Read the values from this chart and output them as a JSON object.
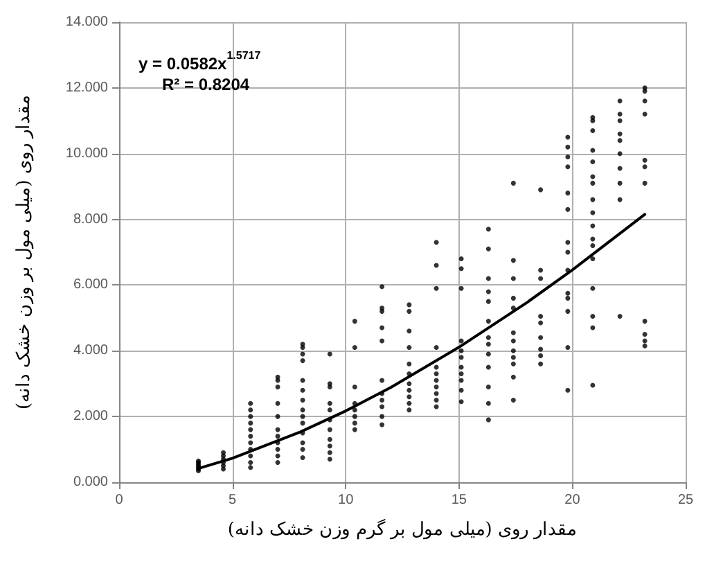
{
  "chart_data": {
    "type": "scatter",
    "xlabel": "مقدار روی (میلی مول بر گرم وزن خشک دانه)",
    "ylabel": "مقدار روی (میلی مول بر وزن خشک دانه)",
    "annotations": [
      "y = 0.0582x$^{1.5717}$",
      "R² = 0.8204"
    ],
    "xlim": [
      0,
      25
    ],
    "xticks": [
      0,
      5,
      10,
      15,
      20,
      25
    ],
    "ylim": [
      0,
      14
    ],
    "yticks": [
      {
        "value": 0,
        "label": "0.000"
      },
      {
        "value": 2,
        "label": "2.000"
      },
      {
        "value": 4,
        "label": "4.000"
      },
      {
        "value": 6,
        "label": "6.000"
      },
      {
        "value": 8,
        "label": "8.000"
      },
      {
        "value": 10,
        "label": "10.000"
      },
      {
        "value": 12,
        "label": "12.000"
      },
      {
        "value": 14,
        "label": "14.000"
      }
    ],
    "grid": true,
    "marker": "circle",
    "series": [
      {
        "color": "#000000",
        "x": [
          3.5,
          3.5,
          3.5,
          3.5,
          3.5,
          3.5,
          3.5,
          4.6,
          4.6,
          4.6,
          4.6,
          4.6,
          4.6,
          5.8,
          5.8,
          5.8,
          5.8,
          5.8,
          5.8,
          5.8,
          5.8,
          5.8,
          5.8,
          5.8,
          7.0,
          7.0,
          7.0,
          7.0,
          7.0,
          7.0,
          7.0,
          7.0,
          7.0,
          7.0,
          7.0,
          8.1,
          8.1,
          8.1,
          8.1,
          8.1,
          8.1,
          8.1,
          8.1,
          8.1,
          8.1,
          8.1,
          8.1,
          8.1,
          8.1,
          9.3,
          9.3,
          9.3,
          9.3,
          9.3,
          9.3,
          9.3,
          9.3,
          9.3,
          9.3,
          9.3,
          10.4,
          10.4,
          10.4,
          10.4,
          10.4,
          10.4,
          10.4,
          10.4,
          11.6,
          11.6,
          11.6,
          11.6,
          11.6,
          11.6,
          11.6,
          11.6,
          11.6,
          11.6,
          11.6,
          12.8,
          12.8,
          12.8,
          12.8,
          12.8,
          12.8,
          12.8,
          12.8,
          12.8,
          12.8,
          12.8,
          14.0,
          14.0,
          14.0,
          14.0,
          14.0,
          14.0,
          14.0,
          14.0,
          14.0,
          14.0,
          14.0,
          15.1,
          15.1,
          15.1,
          15.1,
          15.1,
          15.1,
          15.1,
          15.1,
          15.1,
          15.1,
          15.1,
          16.3,
          16.3,
          16.3,
          16.3,
          16.3,
          16.3,
          16.3,
          16.3,
          16.3,
          16.3,
          16.3,
          16.3,
          16.3,
          17.4,
          17.4,
          17.4,
          17.4,
          17.4,
          17.4,
          17.4,
          17.4,
          17.4,
          17.4,
          17.4,
          17.4,
          18.6,
          18.6,
          18.6,
          18.6,
          18.6,
          18.6,
          18.6,
          18.6,
          18.6,
          19.8,
          19.8,
          19.8,
          19.8,
          19.8,
          19.8,
          19.8,
          19.8,
          19.8,
          19.8,
          19.8,
          19.8,
          19.8,
          19.8,
          20.9,
          20.9,
          20.9,
          20.9,
          20.9,
          20.9,
          20.9,
          20.9,
          20.9,
          20.9,
          20.9,
          20.9,
          20.9,
          20.9,
          20.9,
          20.9,
          20.9,
          22.1,
          22.1,
          22.1,
          22.1,
          22.1,
          22.1,
          22.1,
          22.1,
          22.1,
          22.1,
          23.2,
          23.2,
          23.2,
          23.2,
          23.2,
          23.2,
          23.2,
          23.2,
          23.2,
          23.2,
          23.2
        ],
        "values": [
          0.35,
          0.4,
          0.45,
          0.5,
          0.55,
          0.6,
          0.65,
          0.4,
          0.5,
          0.6,
          0.7,
          0.8,
          0.9,
          0.45,
          0.6,
          0.8,
          1.0,
          1.2,
          1.4,
          1.6,
          1.8,
          2.0,
          2.2,
          2.4,
          0.6,
          0.8,
          1.0,
          1.2,
          1.4,
          1.6,
          2.0,
          2.4,
          2.9,
          3.1,
          3.2,
          0.75,
          1.0,
          1.2,
          1.5,
          1.8,
          2.0,
          2.2,
          2.5,
          2.8,
          3.1,
          3.7,
          3.9,
          4.1,
          4.2,
          0.7,
          0.9,
          1.1,
          1.3,
          1.6,
          1.9,
          2.2,
          2.4,
          2.9,
          3.0,
          3.9,
          1.6,
          1.8,
          2.0,
          2.2,
          2.4,
          2.9,
          4.1,
          4.9,
          1.75,
          2.0,
          2.3,
          2.5,
          2.7,
          3.1,
          4.3,
          4.7,
          5.2,
          5.3,
          5.95,
          2.2,
          2.4,
          2.6,
          2.8,
          3.0,
          3.3,
          3.6,
          4.1,
          4.6,
          5.2,
          5.4,
          2.3,
          2.5,
          2.7,
          2.9,
          3.1,
          3.3,
          3.5,
          4.1,
          5.9,
          6.6,
          7.3,
          2.45,
          2.8,
          3.1,
          3.3,
          3.5,
          3.8,
          4.0,
          4.3,
          5.9,
          6.5,
          6.8,
          1.9,
          2.4,
          2.9,
          3.5,
          3.9,
          4.2,
          4.4,
          4.9,
          5.5,
          5.8,
          6.2,
          7.1,
          7.7,
          2.5,
          3.2,
          3.6,
          3.8,
          4.0,
          4.3,
          4.55,
          5.3,
          5.6,
          6.2,
          6.75,
          9.1,
          3.6,
          3.85,
          4.05,
          4.4,
          4.85,
          5.05,
          6.2,
          6.45,
          8.9,
          2.8,
          4.1,
          5.2,
          5.6,
          5.75,
          6.45,
          7.0,
          7.3,
          8.3,
          8.8,
          9.6,
          9.9,
          10.2,
          10.5,
          2.95,
          4.7,
          5.05,
          5.9,
          6.8,
          7.2,
          7.4,
          7.8,
          8.2,
          8.6,
          9.1,
          9.3,
          9.75,
          10.1,
          10.7,
          11.0,
          11.1,
          5.05,
          8.6,
          9.1,
          9.55,
          10.0,
          10.4,
          10.6,
          11.0,
          11.2,
          11.6,
          4.15,
          4.3,
          4.5,
          4.9,
          9.1,
          9.6,
          9.8,
          11.2,
          11.6,
          11.9,
          12.0
        ]
      },
      {
        "type": "line",
        "color": "#000000",
        "marker": "none",
        "line_style": "solid",
        "x": [
          3.5,
          5,
          8,
          10,
          12,
          15,
          18,
          20,
          23.2
        ],
        "values": [
          0.42,
          0.73,
          1.53,
          2.17,
          2.89,
          4.11,
          5.47,
          6.46,
          8.15
        ]
      }
    ]
  }
}
